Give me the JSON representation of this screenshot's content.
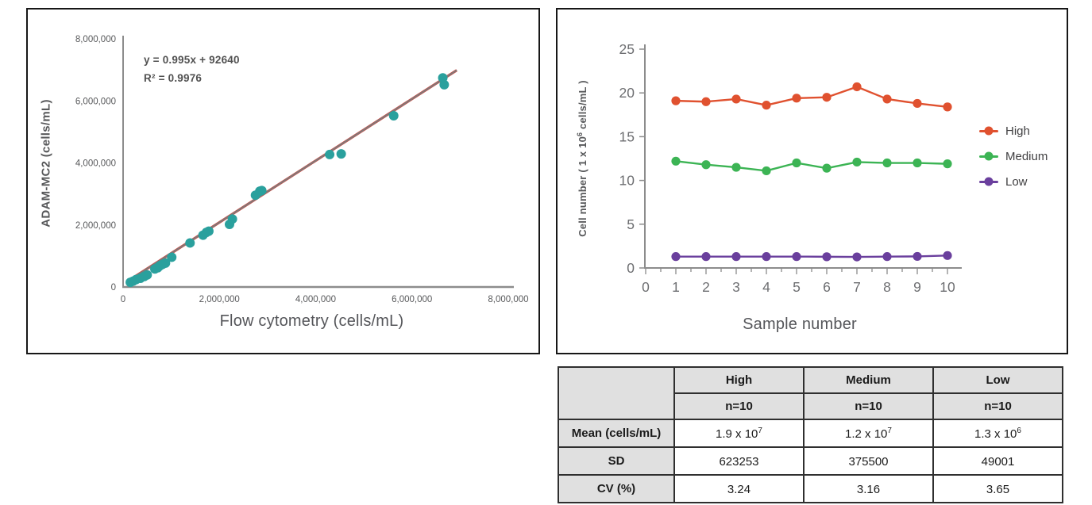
{
  "scatter_panel": {
    "equation_line1": "y = 0.995x + 92640",
    "equation_line2": "R² = 0.9976",
    "x_axis_label": "Flow cytometry (cells/mL)",
    "y_axis_label": "ADAM-MC2 (cells/mL)",
    "point_color": "#2aa09d",
    "trendline_color": "#7b7b7b",
    "trendline_under_color": "#c9504a",
    "axis_color": "#8c8c8c",
    "tick_text_color": "#58595b"
  },
  "line_panel": {
    "x_axis_label": "Sample number",
    "y_axis_label_pre": "Cell  number ( 1 x 10",
    "y_axis_label_exp": "6",
    "y_axis_label_post": " cells/mL )",
    "axis_color": "#8c8c8c",
    "tick_text_color": "#6d6e71",
    "legend": [
      {
        "label": "High",
        "color": "#e0512f"
      },
      {
        "label": "Medium",
        "color": "#3cb454"
      },
      {
        "label": "Low",
        "color": "#6a3f9d"
      }
    ]
  },
  "chart_data": [
    {
      "type": "scatter",
      "title": "",
      "xlabel": "Flow cytometry (cells/mL)",
      "ylabel": "ADAM-MC2 (cells/mL)",
      "xlim": [
        0,
        8000000
      ],
      "ylim": [
        0,
        8000000
      ],
      "x_ticks": [
        0,
        2000000,
        4000000,
        6000000,
        8000000
      ],
      "y_ticks": [
        0,
        2000000,
        4000000,
        6000000,
        8000000
      ],
      "grid": false,
      "annotations": [
        "y = 0.995x + 92640",
        "R² = 0.9976"
      ],
      "trendline": {
        "slope": 0.995,
        "intercept": 92640,
        "r_squared": 0.9976,
        "x_start": 80000,
        "x_end": 6930000
      },
      "points": [
        [
          150000,
          150000
        ],
        [
          210000,
          190000
        ],
        [
          270000,
          240000
        ],
        [
          360000,
          280000
        ],
        [
          440000,
          340000
        ],
        [
          500000,
          390000
        ],
        [
          660000,
          580000
        ],
        [
          720000,
          620000
        ],
        [
          770000,
          690000
        ],
        [
          820000,
          730000
        ],
        [
          880000,
          770000
        ],
        [
          1010000,
          960000
        ],
        [
          1390000,
          1420000
        ],
        [
          1660000,
          1670000
        ],
        [
          1730000,
          1760000
        ],
        [
          1780000,
          1800000
        ],
        [
          2210000,
          2020000
        ],
        [
          2270000,
          2190000
        ],
        [
          2750000,
          2960000
        ],
        [
          2840000,
          3090000
        ],
        [
          2880000,
          3110000
        ],
        [
          4290000,
          4270000
        ],
        [
          4530000,
          4290000
        ],
        [
          5620000,
          5520000
        ],
        [
          6640000,
          6740000
        ],
        [
          6670000,
          6520000
        ]
      ]
    },
    {
      "type": "line",
      "title": "",
      "xlabel": "Sample number",
      "ylabel": "Cell number (1 x 10⁶ cells/mL)",
      "x": [
        1,
        2,
        3,
        4,
        5,
        6,
        7,
        8,
        9,
        10
      ],
      "xlim": [
        0,
        10.5
      ],
      "ylim": [
        0,
        25
      ],
      "x_ticks": [
        0,
        1,
        2,
        3,
        4,
        5,
        6,
        7,
        8,
        9,
        10
      ],
      "y_ticks": [
        0,
        5,
        10,
        15,
        20,
        25
      ],
      "grid": false,
      "legend_position": "right",
      "series": [
        {
          "name": "High",
          "color": "#e0512f",
          "values": [
            19.1,
            19.0,
            19.3,
            18.6,
            19.4,
            19.5,
            20.7,
            19.3,
            18.8,
            18.4
          ]
        },
        {
          "name": "Medium",
          "color": "#3cb454",
          "values": [
            12.2,
            11.8,
            11.5,
            11.1,
            12.0,
            11.4,
            12.1,
            12.0,
            12.0,
            11.9
          ]
        },
        {
          "name": "Low",
          "color": "#6a3f9d",
          "values": [
            1.3,
            1.3,
            1.3,
            1.3,
            1.3,
            1.28,
            1.26,
            1.3,
            1.32,
            1.42
          ]
        }
      ]
    }
  ],
  "table": {
    "col_headers": [
      "High",
      "Medium",
      "Low"
    ],
    "subheaders": [
      "n=10",
      "n=10",
      "n=10"
    ],
    "rows": [
      {
        "label": "Mean (cells/mL)",
        "cells": [
          {
            "base": "1.9 x 10",
            "exp": "7"
          },
          {
            "base": "1.2 x 10",
            "exp": "7"
          },
          {
            "base": "1.3 x 10",
            "exp": "6"
          }
        ]
      },
      {
        "label": "SD",
        "cells": [
          {
            "base": "623253",
            "exp": ""
          },
          {
            "base": "375500",
            "exp": ""
          },
          {
            "base": "49001",
            "exp": ""
          }
        ]
      },
      {
        "label": "CV (%)",
        "cells": [
          {
            "base": "3.24",
            "exp": ""
          },
          {
            "base": "3.16",
            "exp": ""
          },
          {
            "base": "3.65",
            "exp": ""
          }
        ]
      }
    ]
  }
}
